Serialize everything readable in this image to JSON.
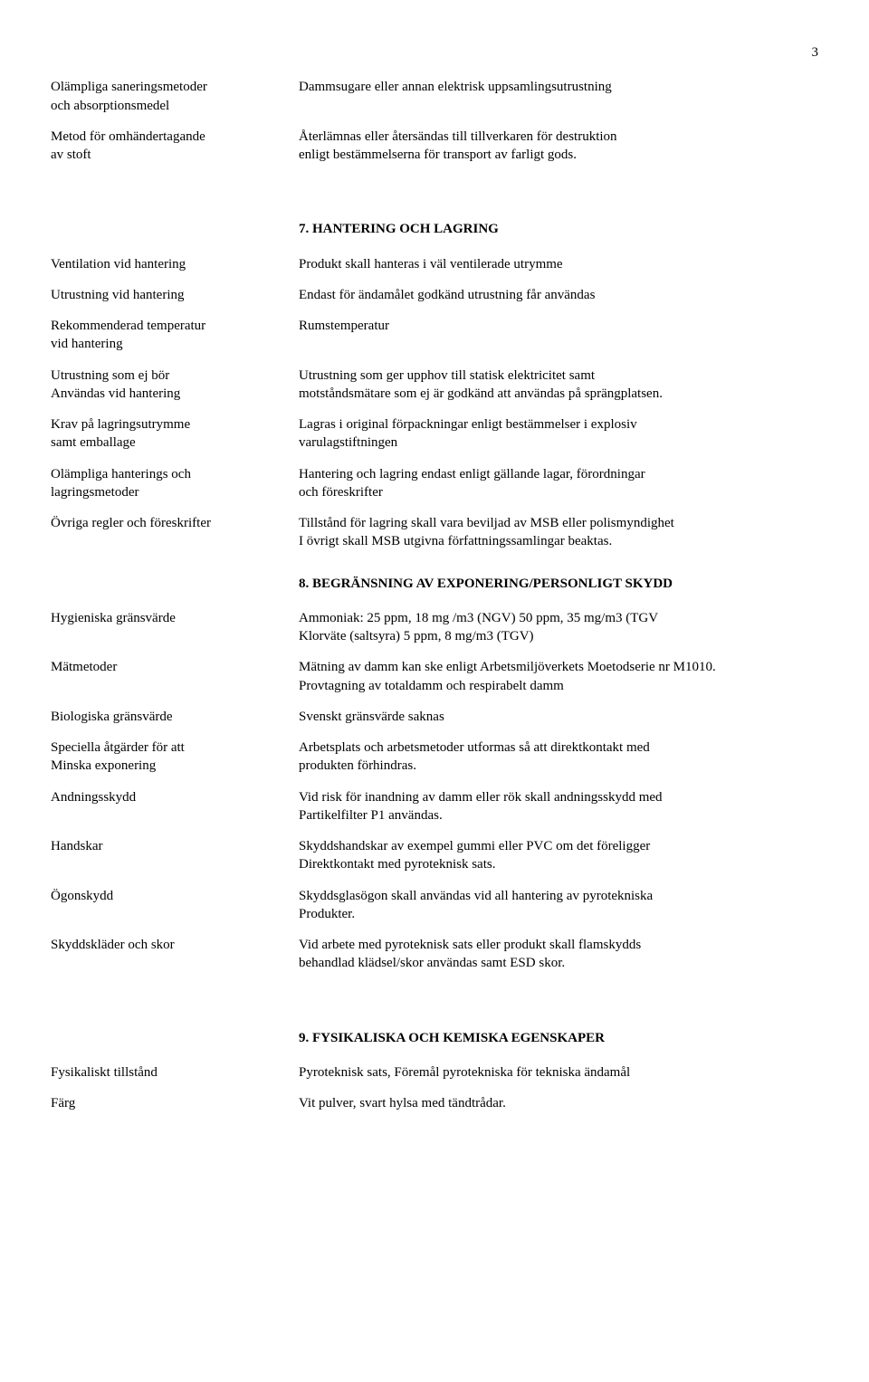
{
  "page_number": "3",
  "section7_heading": "7. HANTERING OCH LAGRING",
  "section8_heading": "8. BEGRÄNSNING AV EXPONERING/PERSONLIGT SKYDD",
  "section9_heading": "9. FYSIKALISKA OCH KEMISKA EGENSKAPER",
  "top_rows": [
    {
      "label_line1": "Olämpliga saneringsmetoder",
      "label_line2": "och absorptionsmedel",
      "value_line1": "Dammsugare eller annan elektrisk uppsamlingsutrustning",
      "value_line2": ""
    },
    {
      "label_line1": "Metod för omhändertagande",
      "label_line2": "av stoft",
      "value_line1": "Återlämnas eller återsändas till tillverkaren för destruktion",
      "value_line2": "enligt bestämmelserna för transport av farligt gods."
    }
  ],
  "sec7_rows": [
    {
      "label_line1": "Ventilation vid hantering",
      "label_line2": "",
      "value_line1": "Produkt skall hanteras i väl ventilerade utrymme",
      "value_line2": ""
    },
    {
      "label_line1": "Utrustning vid hantering",
      "label_line2": "",
      "value_line1": "Endast för ändamålet godkänd utrustning får användas",
      "value_line2": ""
    },
    {
      "label_line1": "Rekommenderad temperatur",
      "label_line2": "vid hantering",
      "value_line1": "Rumstemperatur",
      "value_line2": ""
    },
    {
      "label_line1": "Utrustning som ej bör",
      "label_line2": "Användas vid hantering",
      "value_line1": "Utrustning som ger upphov till statisk elektricitet samt",
      "value_line2": "motståndsmätare som ej är godkänd att användas på sprängplatsen."
    },
    {
      "label_line1": "Krav på lagringsutrymme",
      "label_line2": "samt emballage",
      "value_line1": "Lagras i original förpackningar enligt bestämmelser i explosiv",
      "value_line2": "varulagstiftningen"
    },
    {
      "label_line1": "Olämpliga  hanterings och",
      "label_line2": "lagringsmetoder",
      "value_line1": "Hantering och lagring endast enligt gällande lagar, förordningar",
      "value_line2": "och föreskrifter"
    },
    {
      "label_line1": "Övriga regler och föreskrifter",
      "label_line2": "",
      "value_line1": "Tillstånd för lagring skall vara beviljad av MSB eller polismyndighet",
      "value_line2": "I övrigt skall MSB utgivna författningssamlingar beaktas."
    }
  ],
  "sec8_rows": [
    {
      "label_line1": "Hygieniska gränsvärde",
      "label_line2": "",
      "value_line1": "Ammoniak: 25 ppm, 18 mg /m3 (NGV) 50 ppm, 35 mg/m3 (TGV",
      "value_line2": "Klorväte (saltsyra) 5 ppm, 8 mg/m3 (TGV)"
    },
    {
      "label_line1": "Mätmetoder",
      "label_line2": "",
      "value_line1": "Mätning av damm kan ske enligt Arbetsmiljöverkets Moetodserie nr M1010.",
      "value_line2": "Provtagning av totaldamm och respirabelt damm"
    },
    {
      "label_line1": "Biologiska gränsvärde",
      "label_line2": "",
      "value_line1": "Svenskt gränsvärde saknas",
      "value_line2": ""
    },
    {
      "label_line1": "Speciella åtgärder för att",
      "label_line2": "Minska exponering",
      "value_line1": "Arbetsplats och arbetsmetoder utformas så att direktkontakt med",
      "value_line2": "produkten förhindras."
    },
    {
      "label_line1": "Andningsskydd",
      "label_line2": "",
      "value_line1": "Vid risk för inandning av damm eller rök skall andningsskydd med",
      "value_line2": "Partikelfilter P1 användas."
    },
    {
      "label_line1": "Handskar",
      "label_line2": "",
      "value_line1": "Skyddshandskar av exempel gummi eller PVC om det föreligger",
      "value_line2": "Direktkontakt med pyroteknisk sats."
    },
    {
      "label_line1": "Ögonskydd",
      "label_line2": "",
      "value_line1": "Skyddsglasögon skall användas vid all hantering av pyrotekniska",
      "value_line2": "Produkter."
    },
    {
      "label_line1": "Skyddskläder och skor",
      "label_line2": "",
      "value_line1": "Vid arbete med  pyroteknisk sats eller produkt skall flamskydds",
      "value_line2": "behandlad  klädsel/skor användas samt ESD skor."
    }
  ],
  "sec9_rows": [
    {
      "label_line1": "Fysikaliskt tillstånd",
      "label_line2": "",
      "value_line1": "Pyroteknisk sats, Föremål pyrotekniska för tekniska ändamål",
      "value_line2": ""
    },
    {
      "label_line1": "Färg",
      "label_line2": "",
      "value_line1": "Vit pulver, svart hylsa med tändtrådar.",
      "value_line2": ""
    }
  ]
}
